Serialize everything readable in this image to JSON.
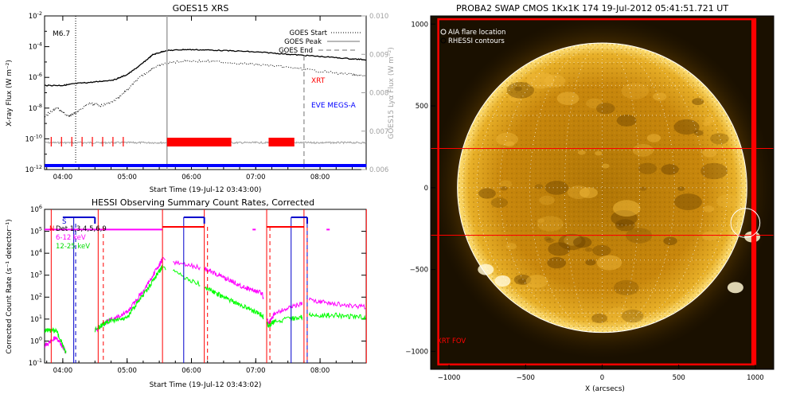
{
  "panels": {
    "xrs": {
      "title": "GOES15 XRS",
      "ylabel": "X-ray Flux (W m⁻²)",
      "ylabel_right": "GOES15 Lyα Flux (W m⁻²)",
      "xlabel": "Start Time (19-Jul-12 03:43:00)",
      "flare_class": "M6.7",
      "legend": [
        "GOES Start",
        "GOES Peak",
        "GOES End"
      ],
      "labels": {
        "xrt": "XRT",
        "eve": "EVE MEGS-A"
      },
      "colors": {
        "xrt": "#ff0000",
        "eve": "#0000ff",
        "lya": "#a0a0a0"
      }
    },
    "hessi": {
      "title": "HESSI Observing Summary Count Rates, Corrected",
      "ylabel": "Corrected Count Rate (s⁻¹ detector⁻¹)",
      "xlabel": "Start Time (19-Jul-12 03:43:02)",
      "legend": [
        "Det 1,3,4,5,6,9",
        "6-12 keV",
        "12-25 keV"
      ],
      "markers": {
        "n": "N",
        "s": "S"
      },
      "colors": {
        "det": "#000000",
        "low": "#ff00ff",
        "high": "#00ff00",
        "red": "#ff0000",
        "blue": "#0000cc"
      }
    },
    "swap": {
      "title": "PROBA2 SWAP CMOS 1Kx1K 174 19-Jul-2012 05:41:51.721 UT",
      "xlabel": "X (arcsecs)",
      "legend": [
        "AIA flare location",
        "RHESSI contours"
      ],
      "fov_label": "XRT FOV"
    }
  },
  "chart_data": [
    {
      "type": "line",
      "title": "GOES15 XRS",
      "xlabel": "Start Time (19-Jul-12 03:43:00)",
      "ylabel": "X-ray Flux (W m-2)",
      "y2label": "GOES15 Lyα Flux (W m-2)",
      "xlim": [
        3.7167,
        8.7167
      ],
      "ylim": [
        1e-12,
        0.01
      ],
      "yscale": "log",
      "y2lim": [
        0.006,
        0.01
      ],
      "x_ticks": [
        "04:00",
        "05:00",
        "06:00",
        "07:00",
        "08:00"
      ],
      "y_ticks": [
        "10^-12",
        "10^-10",
        "10^-8",
        "10^-6",
        "10^-4",
        "10^-2"
      ],
      "y2_ticks": [
        "0.006",
        "0.007",
        "0.008",
        "0.009",
        "0.010"
      ],
      "series": [
        {
          "name": "",
          "x": [
            3.72,
            4.0,
            4.2,
            4.5,
            4.8,
            5.0,
            5.2,
            5.4,
            5.6,
            5.9,
            6.3,
            6.8,
            7.2,
            7.6,
            8.0,
            8.5,
            8.72
          ],
          "y": [
            3e-07,
            3e-07,
            4e-07,
            5e-07,
            7e-07,
            1.5e-06,
            6e-06,
            3e-05,
            5.5e-05,
            6.5e-05,
            6e-05,
            5e-05,
            4e-05,
            3e-05,
            2.3e-05,
            1.6e-05,
            1.4e-05
          ]
        },
        {
          "name": "",
          "x": [
            3.72,
            3.9,
            4.1,
            4.2,
            4.4,
            4.6,
            4.8,
            5.0,
            5.2,
            5.4,
            5.6,
            5.9,
            6.3,
            6.8,
            7.2,
            7.6,
            8.0,
            8.5,
            8.72
          ],
          "y": [
            3e-09,
            1e-08,
            3e-09,
            5e-09,
            2e-08,
            1.5e-08,
            3e-08,
            1.5e-07,
            1e-06,
            4e-06,
            8e-06,
            1.2e-05,
            1.1e-05,
            8e-06,
            6e-06,
            4e-06,
            2.5e-06,
            1.5e-06,
            1.2e-06
          ]
        }
      ],
      "lya_level": 0.0067,
      "events": {
        "goes_start": 4.2,
        "goes_peak": 5.62,
        "goes_end": 7.75
      },
      "xrt_ticks": [
        3.82,
        3.98,
        4.14,
        4.3,
        4.46,
        4.62,
        4.78,
        4.94
      ],
      "xrt_bars": [
        [
          5.62,
          6.62
        ],
        [
          7.2,
          7.6
        ]
      ],
      "eve_bar": [
        3.72,
        8.72
      ]
    },
    {
      "type": "line",
      "title": "HESSI Observing Summary Count Rates, Corrected",
      "xlabel": "Start Time (19-Jul-12 03:43:02)",
      "ylabel": "Corrected Count Rate (s-1 detector-1)",
      "xlim": [
        3.7167,
        8.7167
      ],
      "ylim": [
        0.1,
        1000000.0
      ],
      "yscale": "log",
      "x_ticks": [
        "04:00",
        "05:00",
        "06:00",
        "07:00",
        "08:00"
      ],
      "y_ticks": [
        "10^-1",
        "10^0",
        "10^1",
        "10^2",
        "10^3",
        "10^4",
        "10^5",
        "10^6"
      ],
      "series": [
        {
          "name": "6-12 keV",
          "x": [
            3.72,
            3.9,
            4.05,
            4.55,
            4.7,
            5.0,
            5.3,
            5.5,
            5.55,
            6.2,
            6.5,
            6.8,
            7.1,
            7.2,
            7.3,
            7.7,
            7.8,
            8.2,
            8.72
          ],
          "y": [
            0.6,
            1.5,
            0.3,
            4,
            8,
            20,
            300,
            3000,
            5000,
            2000,
            800,
            300,
            150,
            6,
            20,
            50,
            80,
            50,
            35
          ]
        },
        {
          "name": "12-25 keV",
          "x": [
            3.72,
            3.9,
            4.05,
            4.55,
            4.7,
            5.0,
            5.3,
            5.5,
            5.55,
            6.2,
            6.5,
            6.8,
            7.1,
            7.2,
            7.3,
            7.7,
            7.8,
            8.2,
            8.72
          ],
          "y": [
            3,
            3,
            0.3,
            4,
            8,
            12,
            200,
            1500,
            2500,
            300,
            100,
            40,
            15,
            5,
            8,
            12,
            15,
            15,
            12
          ]
        }
      ],
      "red_lines": [
        3.82,
        4.55,
        5.55,
        6.2,
        7.17,
        7.75,
        8.72
      ],
      "blue_lines": [
        4.17,
        5.88,
        7.55
      ],
      "red_dashed": [
        4.63,
        6.25,
        7.22,
        7.8
      ],
      "blue_dashed": [
        4.2,
        7.8
      ],
      "top_red": [
        [
          5.55,
          6.2
        ],
        [
          7.17,
          7.75
        ]
      ],
      "top_blue": [
        [
          4.0,
          4.5
        ],
        [
          5.88,
          6.2
        ],
        [
          7.55,
          7.8
        ]
      ]
    },
    {
      "type": "image",
      "title": "PROBA2 SWAP CMOS 1Kx1K 174 19-Jul-2012 05:41:51.721 UT",
      "xlabel": "X (arcsecs)",
      "xlim": [
        -1120,
        1120
      ],
      "ylim": [
        -1110,
        1050
      ],
      "x_ticks": [
        -1000,
        -500,
        0,
        500,
        1000
      ],
      "y_ticks": [
        -1000,
        -500,
        0,
        500,
        1000
      ],
      "solar_radius": 945,
      "fov_box": {
        "x": [
          -1070,
          1000
        ],
        "y": [
          -1080,
          1030
        ]
      },
      "slit": {
        "y": [
          -290,
          240
        ]
      },
      "flare_location": {
        "x": 935,
        "y": -215,
        "r": 95
      }
    }
  ]
}
